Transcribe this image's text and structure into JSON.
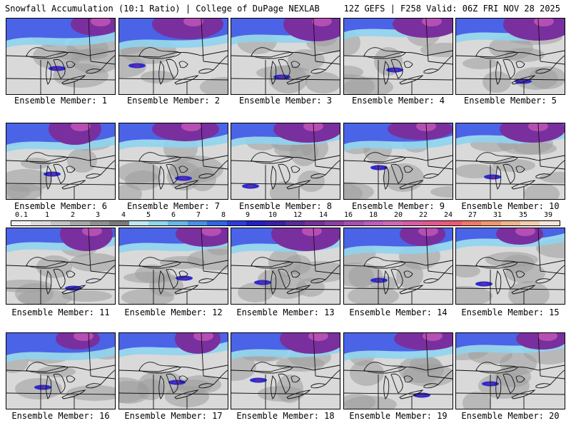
{
  "header": {
    "title": "Snowfall Accumulation (10:1 Ratio) | College of DuPage NEXLAB",
    "run_info": "12Z GEFS | F258 Valid: 06Z FRI NOV 28 2025"
  },
  "colorbar": {
    "ticks": [
      "0.1",
      "1",
      "2",
      "3",
      "4",
      "5",
      "6",
      "7",
      "8",
      "9",
      "10",
      "12",
      "14",
      "16",
      "18",
      "20",
      "22",
      "24",
      "27",
      "31",
      "35",
      "39"
    ],
    "colors": [
      "#f2f2f2",
      "#dcdcdc",
      "#c4c4c4",
      "#a8a8a8",
      "#909090",
      "#7a7a7a",
      "#bfe7f5",
      "#90d6ef",
      "#66b8ea",
      "#4a8fe8",
      "#2f66e8",
      "#2b3be6",
      "#1f20c8",
      "#3a1fa8",
      "#5a2b9a",
      "#76319a",
      "#8e3fa6",
      "#a84fb6",
      "#c25bbf",
      "#d067b8",
      "#dc5aa8",
      "#e6568f",
      "#ee5a74",
      "#f07864",
      "#f19670",
      "#f2b48c",
      "#f4cfae",
      "#f7e6d8"
    ]
  },
  "members": [
    {
      "label": "Ensemble Member: 1",
      "n": 1
    },
    {
      "label": "Ensemble Member: 2",
      "n": 2
    },
    {
      "label": "Ensemble Member: 3",
      "n": 3
    },
    {
      "label": "Ensemble Member: 4",
      "n": 4
    },
    {
      "label": "Ensemble Member: 5",
      "n": 5
    },
    {
      "label": "Ensemble Member: 6",
      "n": 6
    },
    {
      "label": "Ensemble Member: 7",
      "n": 7
    },
    {
      "label": "Ensemble Member: 8",
      "n": 8
    },
    {
      "label": "Ensemble Member: 9",
      "n": 9
    },
    {
      "label": "Ensemble Member: 10",
      "n": 10
    },
    {
      "label": "Ensemble Member: 11",
      "n": 11
    },
    {
      "label": "Ensemble Member: 12",
      "n": 12
    },
    {
      "label": "Ensemble Member: 13",
      "n": 13
    },
    {
      "label": "Ensemble Member: 14",
      "n": 14
    },
    {
      "label": "Ensemble Member: 15",
      "n": 15
    },
    {
      "label": "Ensemble Member: 16",
      "n": 16
    },
    {
      "label": "Ensemble Member: 17",
      "n": 17
    },
    {
      "label": "Ensemble Member: 18",
      "n": 18
    },
    {
      "label": "Ensemble Member: 19",
      "n": 19
    },
    {
      "label": "Ensemble Member: 20",
      "n": 20
    }
  ]
}
